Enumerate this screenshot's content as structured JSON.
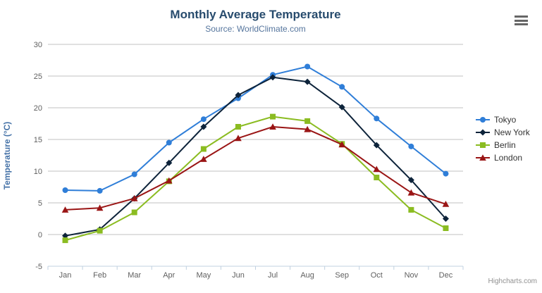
{
  "chart_data": {
    "type": "line",
    "title": "Monthly Average Temperature",
    "subtitle": "Source: WorldClimate.com",
    "xlabel": "",
    "ylabel": "Temperature (°C)",
    "categories": [
      "Jan",
      "Feb",
      "Mar",
      "Apr",
      "May",
      "Jun",
      "Jul",
      "Aug",
      "Sep",
      "Oct",
      "Nov",
      "Dec"
    ],
    "ylim": [
      -5,
      30
    ],
    "ytick_interval": 5,
    "grid": "horizontal",
    "legend_position": "right",
    "series": [
      {
        "name": "Tokyo",
        "marker": "circle",
        "color": "#2f7ed8",
        "values": [
          7.0,
          6.9,
          9.5,
          14.5,
          18.2,
          21.5,
          25.2,
          26.5,
          23.3,
          18.3,
          13.9,
          9.6
        ]
      },
      {
        "name": "New York",
        "marker": "diamond",
        "color": "#0d233a",
        "values": [
          -0.2,
          0.8,
          5.7,
          11.3,
          17.0,
          22.0,
          24.8,
          24.1,
          20.1,
          14.1,
          8.6,
          2.5
        ]
      },
      {
        "name": "Berlin",
        "marker": "square",
        "color": "#8bbc21",
        "values": [
          -0.9,
          0.6,
          3.5,
          8.4,
          13.5,
          17.0,
          18.6,
          17.9,
          14.3,
          9.0,
          3.9,
          1.0
        ]
      },
      {
        "name": "London",
        "marker": "triangle",
        "color": "#9a1515",
        "values": [
          3.9,
          4.2,
          5.7,
          8.5,
          11.9,
          15.2,
          17.0,
          16.6,
          14.2,
          10.3,
          6.6,
          4.8
        ]
      }
    ]
  },
  "colors": {
    "title": "#274b6d",
    "subtitle": "#55759d",
    "axis_title": "#4572a7",
    "axis_labels": "#606060",
    "gridline": "#c0c0c0",
    "axis_line": "#c0d0e0",
    "legend_text": "#333333",
    "menu_icon": "#666666",
    "credits_text": "#909090"
  },
  "credits": {
    "label": "Highcharts.com"
  },
  "menu": {
    "icon": "hamburger-icon"
  }
}
